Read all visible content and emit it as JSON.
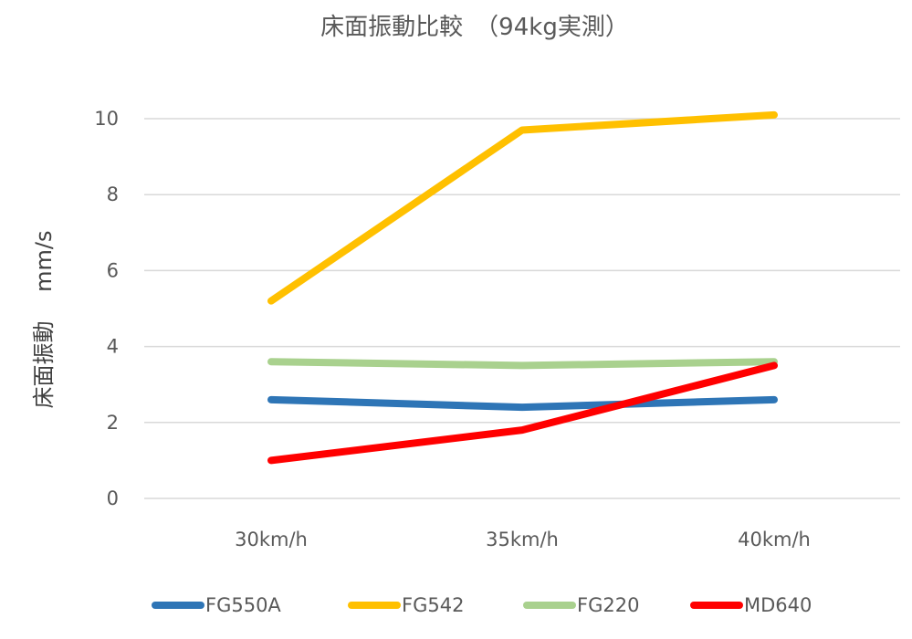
{
  "chart_data": {
    "type": "line",
    "title": "床面振動比較　（94kg実測）",
    "xlabel": "",
    "ylabel": "床面振動　 mm/s",
    "categories": [
      "30km/h",
      "35km/h",
      "40km/h"
    ],
    "ylim": [
      0,
      10
    ],
    "yticks": [
      0,
      2,
      4,
      6,
      8,
      10
    ],
    "grid": true,
    "legend_position": "bottom",
    "series": [
      {
        "name": "FG550A",
        "color": "#2E75B6",
        "values": [
          2.6,
          2.4,
          2.6
        ]
      },
      {
        "name": "FG542",
        "color": "#FFC000",
        "values": [
          5.2,
          9.7,
          10.1
        ]
      },
      {
        "name": "FG220",
        "color": "#A9D18E",
        "values": [
          3.6,
          3.5,
          3.6
        ]
      },
      {
        "name": "MD640",
        "color": "#FF0000",
        "values": [
          1.0,
          1.8,
          3.5
        ]
      }
    ]
  }
}
